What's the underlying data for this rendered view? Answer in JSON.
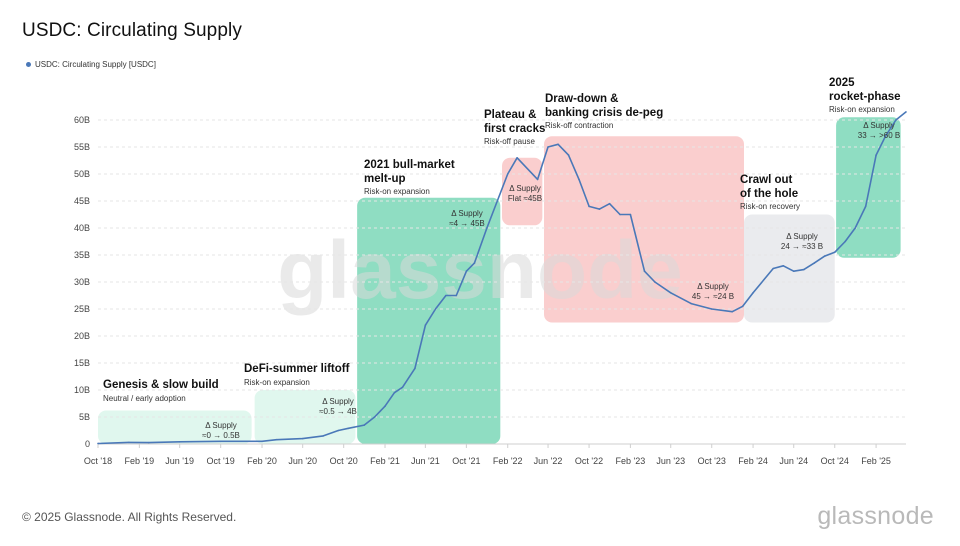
{
  "header": {
    "title": "USDC: Circulating Supply"
  },
  "legend": {
    "label": "USDC: Circulating Supply [USDC]",
    "color": "#4a78b8"
  },
  "footer": {
    "copyright": "© 2025 Glassnode. All Rights Reserved.",
    "brand": "glassnode"
  },
  "watermark": "glassnode",
  "colors": {
    "line": "#4a78b8",
    "green": "#44c79a",
    "red": "#f28b8b",
    "grey": "#c3c7cf",
    "lightgreen": "#8ee3c2"
  },
  "chart_data": {
    "type": "line",
    "title": "USDC: Circulating Supply",
    "y_tick_labels": [
      "0",
      "5B",
      "10B",
      "15B",
      "20B",
      "25B",
      "30B",
      "35B",
      "40B",
      "45B",
      "50B",
      "55B",
      "60B"
    ],
    "x_tick_labels": [
      "Oct '18",
      "Feb '19",
      "Jun '19",
      "Oct '19",
      "Feb '20",
      "Jun '20",
      "Oct '20",
      "Feb '21",
      "Jun '21",
      "Oct '21",
      "Feb '22",
      "Jun '22",
      "Oct '22",
      "Feb '23",
      "Jun '23",
      "Oct '23",
      "Feb '24",
      "Jun '24",
      "Oct '24",
      "Feb '25"
    ],
    "ylim": [
      0,
      60
    ],
    "grid": true,
    "series": [
      {
        "name": "USDC: Circulating Supply [USDC]",
        "unit": "B",
        "points": [
          [
            "2018-10-01",
            0.1
          ],
          [
            "2019-01-01",
            0.3
          ],
          [
            "2019-03-01",
            0.25
          ],
          [
            "2019-06-01",
            0.4
          ],
          [
            "2019-10-01",
            0.5
          ],
          [
            "2020-02-01",
            0.5
          ],
          [
            "2020-03-15",
            0.8
          ],
          [
            "2020-06-01",
            1.0
          ],
          [
            "2020-08-01",
            1.5
          ],
          [
            "2020-09-15",
            2.5
          ],
          [
            "2020-10-15",
            2.9
          ],
          [
            "2020-12-01",
            3.5
          ],
          [
            "2021-01-01",
            5.0
          ],
          [
            "2021-02-01",
            7.0
          ],
          [
            "2021-03-01",
            9.5
          ],
          [
            "2021-03-25",
            10.5
          ],
          [
            "2021-05-01",
            14.0
          ],
          [
            "2021-06-01",
            22.0
          ],
          [
            "2021-07-01",
            25.0
          ],
          [
            "2021-08-01",
            27.5
          ],
          [
            "2021-09-01",
            27.5
          ],
          [
            "2021-10-01",
            32.0
          ],
          [
            "2021-10-25",
            33.5
          ],
          [
            "2021-12-01",
            40.0
          ],
          [
            "2022-01-01",
            45.0
          ],
          [
            "2022-02-01",
            50.0
          ],
          [
            "2022-03-01",
            53.0
          ],
          [
            "2022-05-01",
            49.0
          ],
          [
            "2022-06-01",
            55.0
          ],
          [
            "2022-07-01",
            55.5
          ],
          [
            "2022-08-01",
            53.5
          ],
          [
            "2022-09-01",
            49.0
          ],
          [
            "2022-10-01",
            44.0
          ],
          [
            "2022-11-01",
            43.5
          ],
          [
            "2022-12-01",
            44.5
          ],
          [
            "2023-01-01",
            42.5
          ],
          [
            "2023-02-01",
            42.5
          ],
          [
            "2023-03-15",
            32.0
          ],
          [
            "2023-04-15",
            30.0
          ],
          [
            "2023-06-01",
            28.0
          ],
          [
            "2023-08-01",
            26.0
          ],
          [
            "2023-10-01",
            25.0
          ],
          [
            "2023-12-01",
            24.5
          ],
          [
            "2024-01-01",
            25.5
          ],
          [
            "2024-02-01",
            28.0
          ],
          [
            "2024-04-01",
            32.5
          ],
          [
            "2024-05-01",
            33.0
          ],
          [
            "2024-06-01",
            32.0
          ],
          [
            "2024-07-01",
            32.3
          ],
          [
            "2024-08-01",
            33.5
          ],
          [
            "2024-09-01",
            34.8
          ],
          [
            "2024-10-01",
            35.5
          ],
          [
            "2024-11-01",
            37.5
          ],
          [
            "2024-12-01",
            40.0
          ],
          [
            "2025-01-01",
            44.0
          ],
          [
            "2025-02-01",
            53.5
          ],
          [
            "2025-03-01",
            57.0
          ],
          [
            "2025-04-01",
            60.0
          ],
          [
            "2025-05-01",
            61.5
          ]
        ]
      }
    ],
    "annotations": [
      {
        "id": "genesis",
        "heading": "Genesis & slow build",
        "sub": "Neutral / early adoption",
        "delta": [
          "Δ Supply",
          "≈0 → 0.5B"
        ],
        "start": "2018-10-01",
        "end": "2020-01-01",
        "ymin": 0,
        "ymax": 6.2,
        "color": "lightgreen"
      },
      {
        "id": "defi",
        "heading": "DeFi-summer liftoff",
        "sub": "Risk-on expansion",
        "delta": [
          "Δ Supply",
          "≈0.5 → 4B"
        ],
        "start": "2020-01-10",
        "end": "2020-11-05",
        "ymin": 0,
        "ymax": 10.0,
        "color": "lightgreen"
      },
      {
        "id": "bull",
        "heading": "2021 bull-market melt-up",
        "sub": "Risk-on expansion",
        "delta": [
          "Δ Supply",
          "≈4 → 45B"
        ],
        "start": "2020-11-10",
        "end": "2022-01-10",
        "ymin": 0,
        "ymax": 45.6,
        "color": "green"
      },
      {
        "id": "plateau",
        "heading": "Plateau & first cracks",
        "sub": "Risk-off pause",
        "delta": [
          "Δ Supply",
          "Flat ≈45B"
        ],
        "start": "2022-01-15",
        "end": "2022-05-15",
        "ymin": 40.5,
        "ymax": 53.0,
        "color": "red"
      },
      {
        "id": "drawdown",
        "heading": "Draw-down & banking crisis de-peg",
        "sub": "Risk-off contraction",
        "delta": [
          "Δ Supply",
          "45 → ≈24 B"
        ],
        "start": "2022-05-20",
        "end": "2024-01-05",
        "ymin": 22.5,
        "ymax": 57.0,
        "color": "red"
      },
      {
        "id": "crawl",
        "heading": "Crawl out of the hole",
        "sub": "Risk-on recovery",
        "delta": [
          "Δ Supply",
          "24 → ≈33 B"
        ],
        "start": "2024-01-05",
        "end": "2024-10-01",
        "ymin": 22.5,
        "ymax": 42.5,
        "color": "grey"
      },
      {
        "id": "rocket",
        "heading": "2025 rocket-phase",
        "sub": "Risk-on expansion",
        "delta": [
          "Δ Supply",
          "33 → >60 B"
        ],
        "start": "2024-10-05",
        "end": "2025-04-15",
        "ymin": 34.5,
        "ymax": 60.5,
        "color": "green"
      }
    ]
  }
}
